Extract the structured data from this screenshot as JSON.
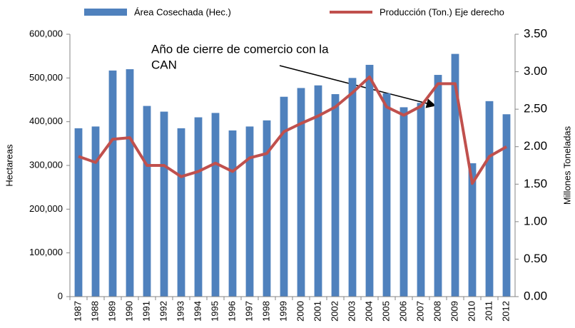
{
  "chart_data": {
    "type": "bar-line",
    "categories": [
      "1987",
      "1988",
      "1989",
      "1990",
      "1991",
      "1992",
      "1993",
      "1994",
      "1995",
      "1996",
      "1997",
      "1998",
      "1999",
      "2000",
      "2001",
      "2002",
      "2003",
      "2004",
      "2005",
      "2006",
      "2007",
      "2008",
      "2009",
      "2010",
      "2011",
      "2012"
    ],
    "series": [
      {
        "name": "Área Cosechada (Hec.)",
        "color": "#4f81bd",
        "type": "bar",
        "values": [
          385000,
          389000,
          517000,
          520000,
          436000,
          423000,
          385000,
          410000,
          420000,
          380000,
          389000,
          403000,
          457000,
          477000,
          483000,
          463000,
          500000,
          530000,
          465000,
          433000,
          443000,
          507000,
          555000,
          305000,
          447000,
          417000
        ]
      },
      {
        "name": "Producción (Ton.) Eje derecho",
        "color": "#c0504d",
        "type": "line",
        "axis": "y2",
        "values": [
          1.87,
          1.79,
          2.1,
          2.12,
          1.75,
          1.75,
          1.6,
          1.67,
          1.78,
          1.67,
          1.85,
          1.91,
          2.2,
          2.31,
          2.41,
          2.53,
          2.72,
          2.93,
          2.53,
          2.42,
          2.54,
          2.84,
          2.84,
          1.51,
          1.87,
          2.0
        ]
      }
    ],
    "y_label": "Hectareas",
    "y2_label": "Millones Toneladas",
    "ylim": [
      0,
      600000
    ],
    "yticks": [
      0,
      {
        "value": 100000,
        "label": "100,000"
      },
      {
        "value": 200000,
        "label": "200,000"
      },
      {
        "value": 300000,
        "label": "300,000"
      },
      {
        "value": 400000,
        "label": "400,000"
      },
      {
        "value": 500000,
        "label": "500,000"
      },
      {
        "value": 600000,
        "label": "600,000"
      }
    ],
    "y2lim": [
      0,
      3.5
    ],
    "y2ticks": [
      {
        "value": 0,
        "label": "0.00"
      },
      {
        "value": 0.5,
        "label": "0.50"
      },
      {
        "value": 1,
        "label": "1.00"
      },
      {
        "value": 1.5,
        "label": "1.50"
      },
      {
        "value": 2,
        "label": "2.00"
      },
      {
        "value": 2.5,
        "label": "2.50"
      },
      {
        "value": 3,
        "label": "3.00"
      },
      {
        "value": 3.5,
        "label": "3.50"
      }
    ],
    "annotation": [
      "Año de cierre de comercio con la",
      "CAN"
    ],
    "legend": "top",
    "grid": false
  }
}
